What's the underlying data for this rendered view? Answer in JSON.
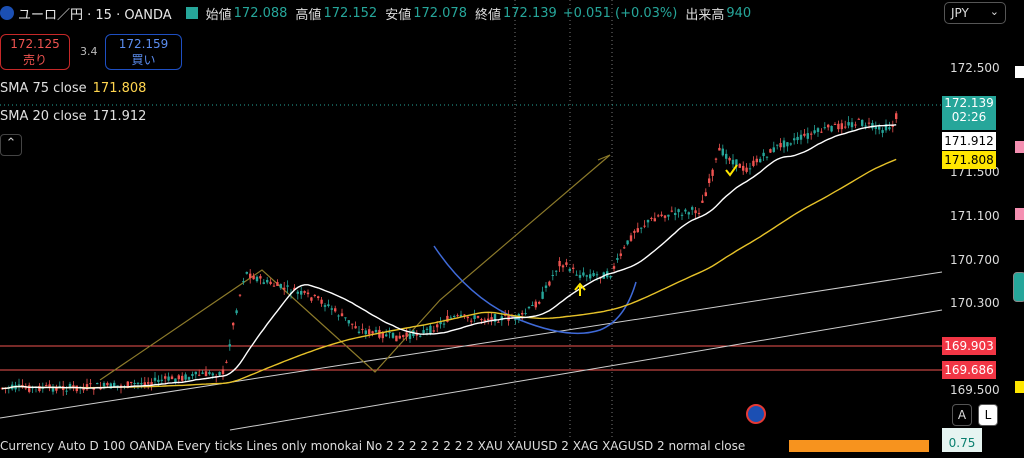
{
  "header": {
    "symbol": "ユーロ／円 · 15 · OANDA",
    "open_label": "始値",
    "open": "172.088",
    "high_label": "高値",
    "high": "172.152",
    "low_label": "安値",
    "low": "172.078",
    "close_label": "終値",
    "close": "172.139",
    "change": "+0.051 (+0.03%)",
    "volume_label": "出来高",
    "volume": "940"
  },
  "trade": {
    "sell_price": "172.125",
    "sell_label": "売り",
    "spread": "3.4",
    "buy_price": "172.159",
    "buy_label": "買い"
  },
  "indicators": [
    {
      "name": "SMA 75 close",
      "value": "171.808"
    },
    {
      "name": "SMA 20 close",
      "value": "171.912"
    }
  ],
  "currency_select": "JPY",
  "price_axis": {
    "ticks": [
      "172.500",
      "171.500",
      "171.100",
      "170.700",
      "170.300",
      "169.500"
    ],
    "current_price": "172.139",
    "countdown": "02:26",
    "sma20_tag": "171.912",
    "sma75_tag": "171.808",
    "level1": "169.903",
    "level2": "169.686"
  },
  "scale_buttons": {
    "a": "A",
    "l": "L"
  },
  "bottom_bar": {
    "text": "Currency    Auto D 100 OANDA Every ticks Lines only monokai No 2 2 2 2 2 2 2 2 XAU XAUUSD 2 XAG XAGUSD 2 normal close",
    "right_value": "0.75"
  },
  "colors": {
    "background": "#000000",
    "up": "#26a69a",
    "down": "#ef5350",
    "sma75": "#e6c229",
    "sma20": "#ffffff",
    "level": "#ef5350",
    "curve": "#3f6ad8",
    "drawing": "#8c7a2a"
  }
}
